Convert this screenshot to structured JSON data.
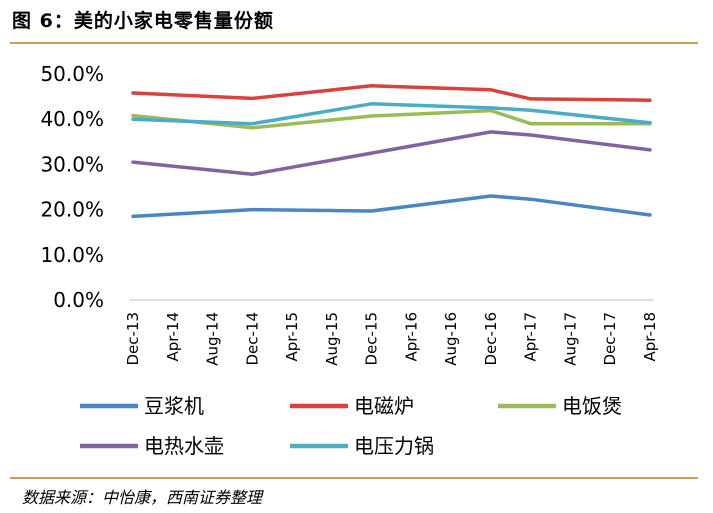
{
  "figure": {
    "title": "图 6：美的小家电零售量份额",
    "source": "数据来源：中怡康，西南证券整理"
  },
  "chart_data": {
    "type": "line",
    "title": "美的小家电零售量份额",
    "xlabel": "",
    "ylabel": "",
    "ylim": [
      0,
      50
    ],
    "y_ticks": [
      0,
      10,
      20,
      30,
      40,
      50
    ],
    "y_tick_labels": [
      "0.0%",
      "10.0%",
      "20.0%",
      "30.0%",
      "40.0%",
      "50.0%"
    ],
    "categories": [
      "Dec-13",
      "Apr-14",
      "Aug-14",
      "Dec-14",
      "Apr-15",
      "Aug-15",
      "Dec-15",
      "Apr-16",
      "Aug-16",
      "Dec-16",
      "Apr-17",
      "Aug-17",
      "Dec-17",
      "Apr-18"
    ],
    "legend_position": "bottom",
    "series": [
      {
        "name": "豆浆机",
        "color": "#4a86c5",
        "x": [
          "Dec-13",
          "Dec-14",
          "Dec-15",
          "Dec-16",
          "Apr-17",
          "Apr-18"
        ],
        "values": [
          18.5,
          20.0,
          19.7,
          23.0,
          22.3,
          18.8
        ]
      },
      {
        "name": "电磁炉",
        "color": "#d9423f",
        "x": [
          "Dec-13",
          "Dec-14",
          "Dec-15",
          "Dec-16",
          "Apr-17",
          "Apr-18"
        ],
        "values": [
          45.8,
          44.6,
          47.4,
          46.5,
          44.5,
          44.2
        ]
      },
      {
        "name": "电饭煲",
        "color": "#9bbb59",
        "x": [
          "Dec-13",
          "Dec-14",
          "Dec-15",
          "Dec-16",
          "Apr-17",
          "Apr-18"
        ],
        "values": [
          40.8,
          38.1,
          40.7,
          41.9,
          39.0,
          39.0
        ]
      },
      {
        "name": "电热水壶",
        "color": "#8064a2",
        "x": [
          "Dec-13",
          "Dec-14",
          "Dec-15",
          "Dec-16",
          "Apr-17",
          "Apr-18"
        ],
        "values": [
          30.5,
          27.8,
          32.5,
          37.2,
          36.5,
          33.2
        ]
      },
      {
        "name": "电压力锅",
        "color": "#4bacc6",
        "x": [
          "Dec-13",
          "Dec-14",
          "Dec-15",
          "Dec-16",
          "Apr-17",
          "Apr-18"
        ],
        "values": [
          40.0,
          39.0,
          43.4,
          42.5,
          42.0,
          39.2
        ]
      }
    ]
  }
}
